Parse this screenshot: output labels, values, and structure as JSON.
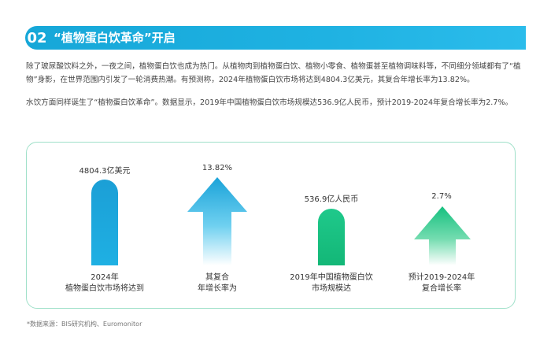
{
  "section": {
    "number": "02",
    "title": "“植物蛋白饮革命”开启"
  },
  "paragraphs": [
    "除了玻尿酸饮料之外，一夜之间，植物蛋白饮也成为热门。从植物肉到植物蛋白饮、植物小零食、植物蛋甚至植物调味料等，不同细分领域都有了“植物”身影，在世界范围内引发了一轮消费热潮。有预测称，2024年植物蛋白饮市场将达到4804.3亿美元，其复合年增长率为13.82%。",
    "水饮方面同样诞生了“植物蛋白饮革命”。数据显示，2019年中国植物蛋白饮市场规模达536.9亿人民币，预计2019-2024年复合增长率为2.7%。"
  ],
  "figure": {
    "items": [
      {
        "value": "4804.3亿美元",
        "caption_line1": "2024年",
        "caption_line2": "植物蛋白饮市场将达到"
      },
      {
        "value": "13.82%",
        "caption_line1": "其复合",
        "caption_line2": "年增长率为"
      },
      {
        "value": "536.9亿人民币",
        "caption_line1": "2019年中国植物蛋白饮",
        "caption_line2": "市场规模达"
      },
      {
        "value": "2.7%",
        "caption_line1": "预计2019-2024年",
        "caption_line2": "复合增长率"
      }
    ]
  },
  "source": "*数据来源：BIS研究机构、Euromonitor",
  "colors": {
    "blue": "#1fb0e3",
    "green": "#16c07f",
    "border": "#9fe0c9"
  }
}
